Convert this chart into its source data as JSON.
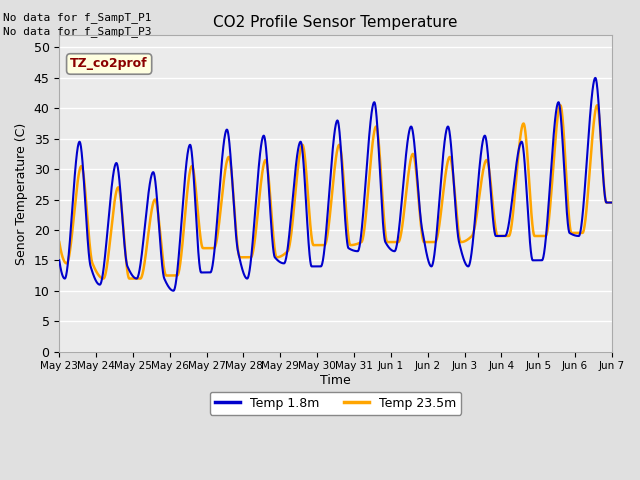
{
  "title": "CO2 Profile Sensor Temperature",
  "ylabel": "Senor Temperature (C)",
  "xlabel": "Time",
  "ylim": [
    0,
    52
  ],
  "yticks": [
    0,
    5,
    10,
    15,
    20,
    25,
    30,
    35,
    40,
    45,
    50
  ],
  "xtick_labels": [
    "May 23",
    "May 24",
    "May 25",
    "May 26",
    "May 27",
    "May 28",
    "May 29",
    "May 30",
    "May 31",
    "Jun 1",
    "Jun 2",
    "Jun 3",
    "Jun 4",
    "Jun 5",
    "Jun 6",
    "Jun 7"
  ],
  "no_data_text1": "No data for f_SampT_P1",
  "no_data_text2": "No data for f_SampT_P3",
  "annotation_text": "TZ_co2prof",
  "line1_color": "#0000CC",
  "line2_color": "#FFA500",
  "line1_label": "Temp 1.8m",
  "line2_label": "Temp 23.5m",
  "bg_color": "#E0E0E0",
  "plot_bg_color": "#EBEBEB",
  "grid_color": "#FFFFFF",
  "blue_keypoints": [
    [
      0.0,
      15.0
    ],
    [
      0.15,
      12.0
    ],
    [
      0.55,
      34.5
    ],
    [
      0.85,
      14.0
    ],
    [
      1.1,
      11.0
    ],
    [
      1.55,
      31.0
    ],
    [
      1.85,
      14.0
    ],
    [
      2.1,
      12.0
    ],
    [
      2.55,
      29.5
    ],
    [
      2.85,
      12.0
    ],
    [
      3.1,
      10.0
    ],
    [
      3.55,
      34.0
    ],
    [
      3.85,
      13.0
    ],
    [
      4.1,
      13.0
    ],
    [
      4.55,
      36.5
    ],
    [
      4.85,
      16.5
    ],
    [
      5.1,
      12.0
    ],
    [
      5.55,
      35.5
    ],
    [
      5.85,
      15.5
    ],
    [
      6.1,
      14.5
    ],
    [
      6.55,
      34.5
    ],
    [
      6.85,
      14.0
    ],
    [
      7.1,
      14.0
    ],
    [
      7.55,
      38.0
    ],
    [
      7.85,
      17.0
    ],
    [
      8.1,
      16.5
    ],
    [
      8.55,
      41.0
    ],
    [
      8.85,
      18.0
    ],
    [
      9.1,
      16.5
    ],
    [
      9.55,
      37.0
    ],
    [
      9.85,
      20.0
    ],
    [
      10.1,
      14.0
    ],
    [
      10.55,
      37.0
    ],
    [
      10.85,
      18.0
    ],
    [
      11.1,
      14.0
    ],
    [
      11.55,
      35.5
    ],
    [
      11.85,
      19.0
    ],
    [
      12.1,
      19.0
    ],
    [
      12.55,
      34.5
    ],
    [
      12.85,
      15.0
    ],
    [
      13.1,
      15.0
    ],
    [
      13.55,
      41.0
    ],
    [
      13.85,
      19.5
    ],
    [
      14.1,
      19.0
    ],
    [
      14.55,
      45.0
    ],
    [
      14.85,
      24.5
    ],
    [
      15.0,
      24.5
    ]
  ],
  "orange_keypoints": [
    [
      0.0,
      18.0
    ],
    [
      0.2,
      14.5
    ],
    [
      0.6,
      30.5
    ],
    [
      0.9,
      14.5
    ],
    [
      1.2,
      12.0
    ],
    [
      1.6,
      27.0
    ],
    [
      1.9,
      12.0
    ],
    [
      2.2,
      12.0
    ],
    [
      2.6,
      25.0
    ],
    [
      2.9,
      12.5
    ],
    [
      3.2,
      12.5
    ],
    [
      3.6,
      30.5
    ],
    [
      3.9,
      17.0
    ],
    [
      4.2,
      17.0
    ],
    [
      4.6,
      32.0
    ],
    [
      4.9,
      15.5
    ],
    [
      5.2,
      15.5
    ],
    [
      5.6,
      31.5
    ],
    [
      5.9,
      15.5
    ],
    [
      6.2,
      16.5
    ],
    [
      6.6,
      34.0
    ],
    [
      6.9,
      17.5
    ],
    [
      7.2,
      17.5
    ],
    [
      7.6,
      34.0
    ],
    [
      7.9,
      17.5
    ],
    [
      8.2,
      18.0
    ],
    [
      8.6,
      37.0
    ],
    [
      8.9,
      18.0
    ],
    [
      9.2,
      18.0
    ],
    [
      9.6,
      32.5
    ],
    [
      9.9,
      18.0
    ],
    [
      10.2,
      18.0
    ],
    [
      10.6,
      32.0
    ],
    [
      10.9,
      18.0
    ],
    [
      11.2,
      19.0
    ],
    [
      11.6,
      31.5
    ],
    [
      11.9,
      19.0
    ],
    [
      12.2,
      19.0
    ],
    [
      12.6,
      37.5
    ],
    [
      12.9,
      19.0
    ],
    [
      13.2,
      19.0
    ],
    [
      13.6,
      40.5
    ],
    [
      13.9,
      19.5
    ],
    [
      14.2,
      19.5
    ],
    [
      14.6,
      40.5
    ],
    [
      14.85,
      24.5
    ],
    [
      15.0,
      24.5
    ]
  ]
}
